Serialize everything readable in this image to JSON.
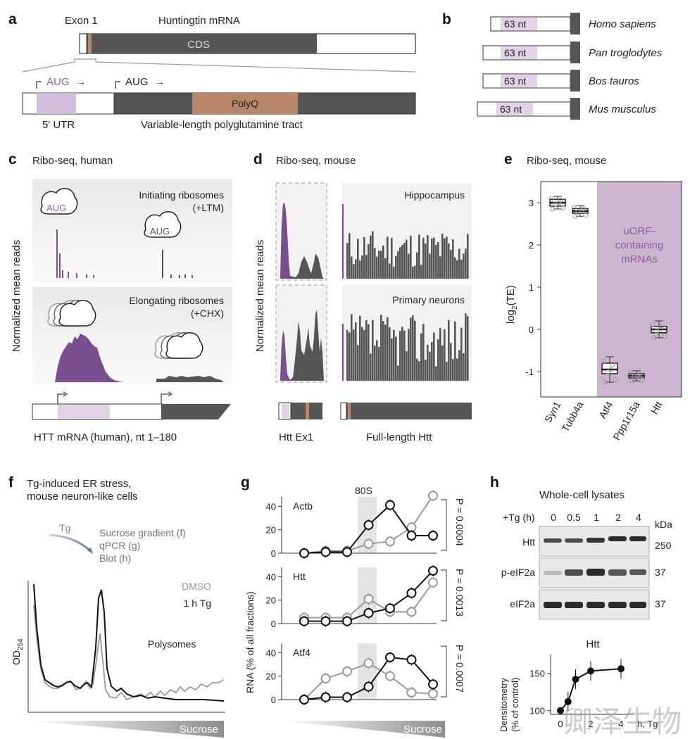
{
  "panel_a": {
    "label": "a",
    "exon": "Exon 1",
    "title": "Huntingtin mRNA",
    "cds": "CDS",
    "aug_u": "AUG",
    "aug_m": "AUG",
    "arrow": "→",
    "utr": "5′ UTR",
    "polyq": "PolyQ",
    "tract": "Variable-length polyglutamine tract"
  },
  "panel_b": {
    "label": "b",
    "species": [
      {
        "nt": "63 nt",
        "name": "Homo sapiens"
      },
      {
        "nt": "63 nt",
        "name": "Pan troglodytes"
      },
      {
        "nt": "63 nt",
        "name": "Bos tauros"
      },
      {
        "nt": "63 nt",
        "name": "Mus musculus"
      }
    ]
  },
  "panel_c": {
    "label": "c",
    "title": "Ribo-seq, human",
    "ylabel": "Normalized mean reads",
    "init": "Initiating ribosomes",
    "ltm": "(+LTM)",
    "elong": "Elongating ribosomes",
    "chx": "(+CHX)",
    "aug1": "AUG",
    "aug2": "AUG",
    "xlabel": "HTT mRNA (human), nt 1–180"
  },
  "panel_d": {
    "label": "d",
    "title": "Ribo-seq, mouse",
    "ylabel": "Normalized mean reads",
    "hippo": "Hippocampus",
    "neurons": "Primary neurons",
    "ex1": "Htt Ex1",
    "full": "Full-length Htt"
  },
  "panel_e": {
    "label": "e",
    "title": "Ribo-seq, mouse",
    "ylabel_main": "log",
    "ylabel_sub": "2",
    "ylabel_rest": "(TE)",
    "uorf": [
      "uORF-",
      "containing",
      "mRNAs"
    ],
    "highlight_color": "#cdb4cf",
    "chart_data": {
      "type": "box",
      "categories": [
        "Syn1",
        "Tubb4a",
        "Atf4",
        "Ppp1r15a",
        "Htt"
      ],
      "medians": [
        3.0,
        2.8,
        -0.95,
        -1.1,
        0.0
      ],
      "q1": [
        2.92,
        2.75,
        -1.05,
        -1.15,
        -0.08
      ],
      "q3": [
        3.08,
        2.86,
        -0.8,
        -1.05,
        0.07
      ],
      "whisker_low": [
        2.85,
        2.68,
        -1.25,
        -1.22,
        -0.2
      ],
      "whisker_high": [
        3.15,
        2.93,
        -0.65,
        -0.98,
        0.2
      ],
      "ylim": [
        -1.6,
        3.5
      ],
      "yticks": [
        -1,
        0,
        1,
        2,
        3
      ]
    }
  },
  "panel_f": {
    "label": "f",
    "title1": "Tg-induced ER stress,",
    "title2": "mouse neuron-like cells",
    "tg": "Tg",
    "steps": [
      "Sucrose gradient (f)",
      "qPCR (g)",
      "Blot (h)"
    ],
    "dmso": "DMSO",
    "tg1h": "1 h Tg",
    "polysomes": "Polysomes",
    "ylabel": "OD",
    "ysub": "254",
    "sucrose": "Sucrose"
  },
  "panel_g": {
    "label": "g",
    "ylabel": "RNA (% of all fractions)",
    "label80s": "80S",
    "sucrose": "Sucrose",
    "chart_data": [
      {
        "gene": "Actb",
        "p": "P = 0.0004",
        "yticks": [
          0,
          20,
          40
        ],
        "ylim": [
          0,
          48
        ],
        "x": [
          1,
          2,
          3,
          4,
          5,
          6,
          7,
          8
        ],
        "series": [
          {
            "name": "DMSO",
            "values": [
              0,
              2,
              2,
              8,
              10,
              22,
              49,
              null
            ]
          },
          {
            "name": "1 h Tg",
            "values": [
              0,
              1,
              1,
              24,
              41,
              15,
              15,
              null
            ]
          }
        ]
      },
      {
        "gene": "Htt",
        "p": "P = 0.0013",
        "yticks": [
          0,
          20,
          40
        ],
        "ylim": [
          0,
          48
        ],
        "x": [
          1,
          2,
          3,
          4,
          5,
          6,
          7,
          8
        ],
        "series": [
          {
            "name": "DMSO",
            "values": [
              5,
              5,
              5,
              21,
              10,
              10,
              35,
              null
            ]
          },
          {
            "name": "1 h Tg",
            "values": [
              2,
              2,
              2,
              9,
              13,
              26,
              45,
              null
            ]
          }
        ]
      },
      {
        "gene": "Atf4",
        "p": "P = 0.0007",
        "yticks": [
          0,
          20,
          40
        ],
        "ylim": [
          0,
          48
        ],
        "x": [
          1,
          2,
          3,
          4,
          5,
          6,
          7,
          8
        ],
        "series": [
          {
            "name": "DMSO",
            "values": [
              0,
              18,
              24,
              31,
              20,
              6,
              5,
              null
            ]
          },
          {
            "name": "1 h Tg",
            "values": [
              0,
              2,
              2,
              11,
              36,
              34,
              13,
              null
            ]
          }
        ]
      }
    ]
  },
  "panel_h": {
    "label": "h",
    "title": "Whole-cell lysates",
    "tg_label": "+Tg (h)",
    "times": [
      "0",
      "0.5",
      "1",
      "2",
      "4"
    ],
    "kda": "kDa",
    "blots": [
      {
        "name": "Htt",
        "kda": "250"
      },
      {
        "name": "p-eIF2a",
        "kda": "37"
      },
      {
        "name": "eIF2a",
        "kda": "37"
      }
    ],
    "chart_title": "Htt",
    "ylabel1": "Densitometry",
    "ylabel2": "(% of control)",
    "xunit": "h, Tg",
    "chart_data": {
      "type": "line",
      "x": [
        0,
        0.5,
        1,
        2,
        4
      ],
      "values": [
        100,
        112,
        142,
        153,
        156
      ],
      "ylim": [
        95,
        175
      ],
      "yticks": [
        100,
        150
      ],
      "xticks": [
        0,
        2,
        4
      ]
    }
  },
  "watermark": "卿泽生物"
}
